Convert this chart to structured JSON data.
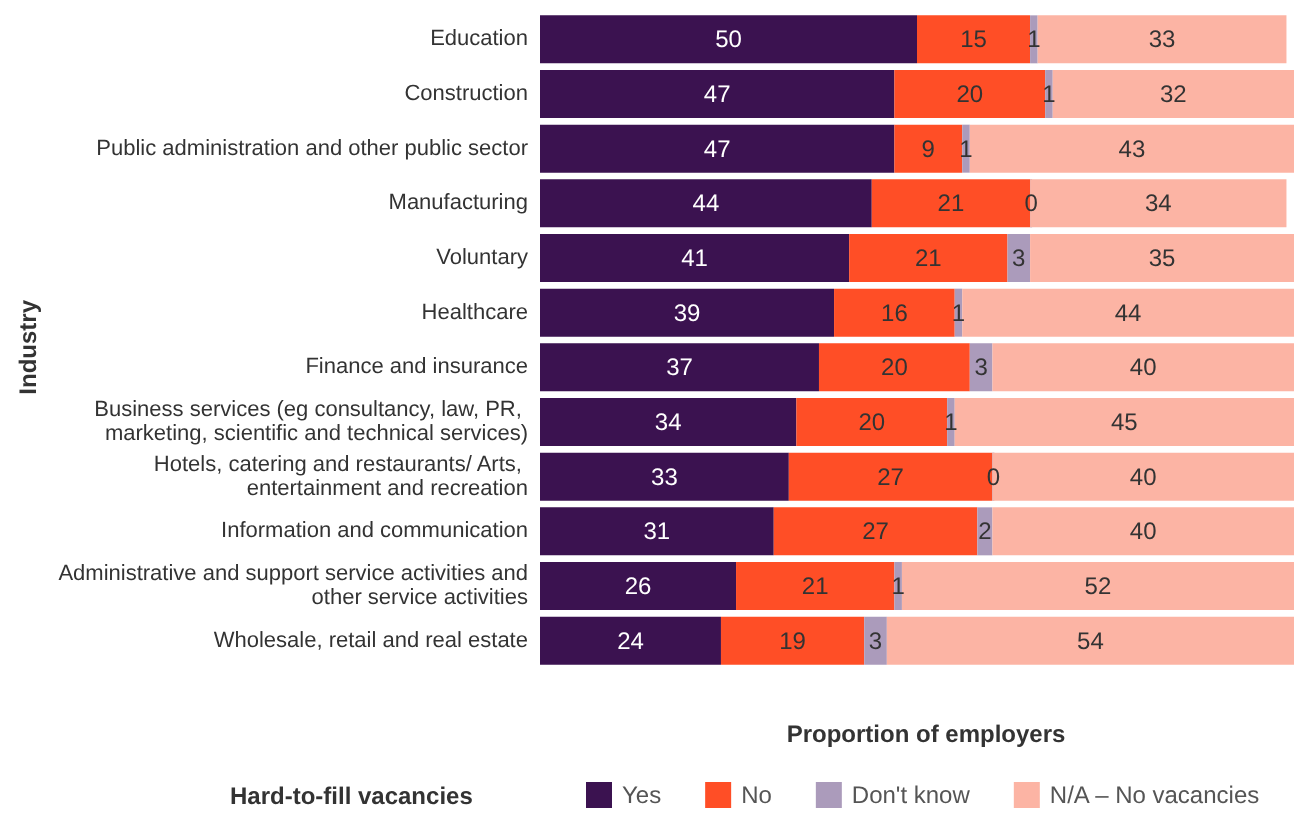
{
  "chart_data": {
    "type": "bar",
    "orientation": "horizontal",
    "stacked": true,
    "data_labels": true,
    "legend": "bottom",
    "legend_title": "Hard-to-fill vacancies",
    "xlabel": "Proportion of employers",
    "ylabel": "Industry",
    "categories": [
      "Education",
      "Construction",
      "Public administration and other public sector",
      "Manufacturing",
      "Voluntary",
      "Healthcare",
      "Finance and insurance",
      "Business services (eg consultancy, law, PR, marketing, scientific and technical services)",
      "Hotels, catering and restaurants/ Arts, entertainment and recreation",
      "Information and communication",
      "Administrative and support service activities and other service activities",
      "Wholesale, retail and real estate"
    ],
    "series": [
      {
        "name": "Yes",
        "color": "#3b1250",
        "values": [
          50,
          47,
          47,
          44,
          41,
          39,
          37,
          34,
          33,
          31,
          26,
          24
        ]
      },
      {
        "name": "No",
        "color": "#ff4e26",
        "values": [
          15,
          20,
          9,
          21,
          21,
          16,
          20,
          20,
          27,
          27,
          21,
          19
        ]
      },
      {
        "name": "Don't know",
        "color": "#ab9bbb",
        "values": [
          1,
          1,
          1,
          0,
          3,
          1,
          3,
          1,
          0,
          2,
          1,
          3
        ]
      },
      {
        "name": "N/A – No vacancies",
        "color": "#fcb4a4",
        "values": [
          33,
          32,
          43,
          34,
          35,
          44,
          40,
          45,
          40,
          40,
          52,
          54
        ]
      }
    ]
  }
}
